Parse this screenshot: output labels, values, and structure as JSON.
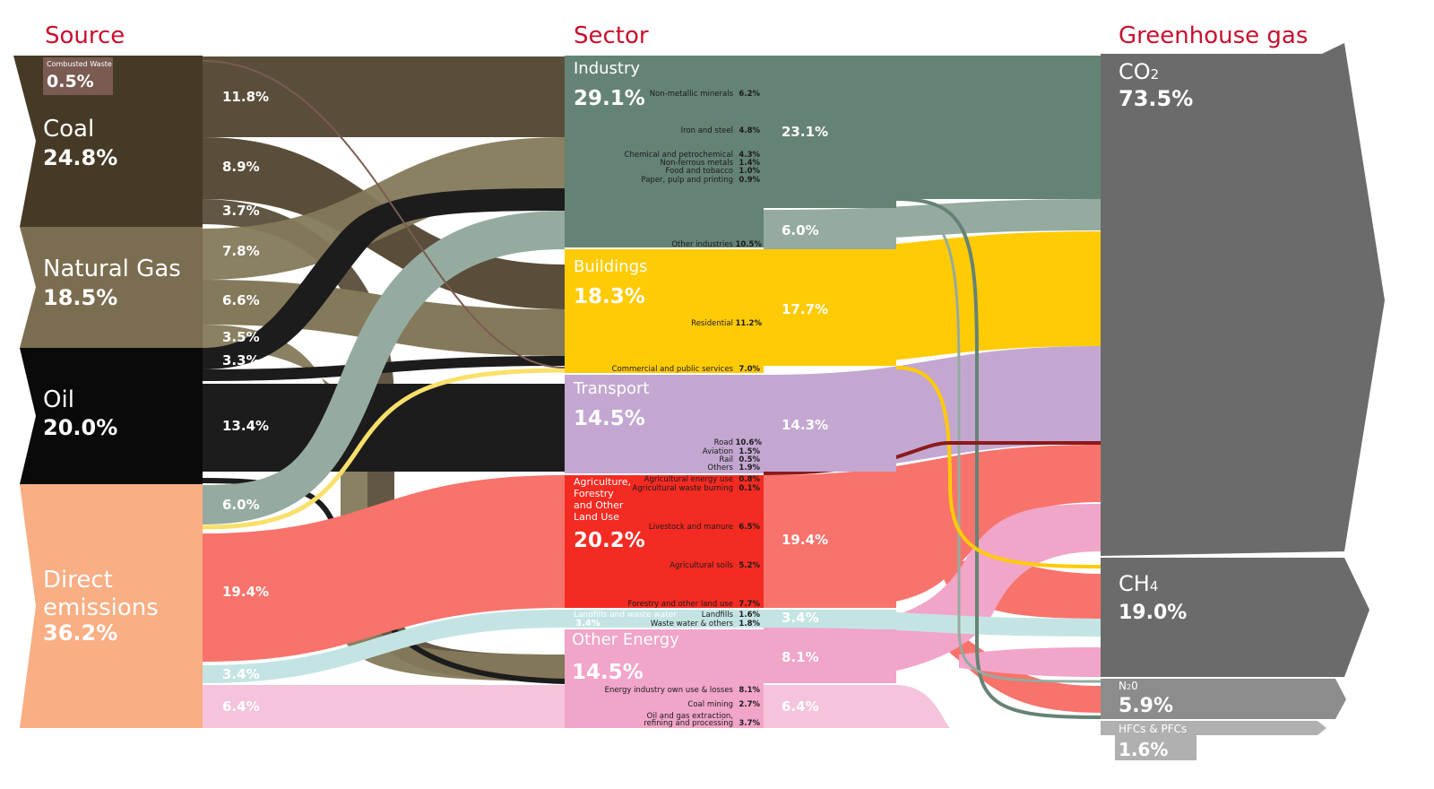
{
  "headers": {
    "source": "Source",
    "sector": "Sector",
    "gas": "Greenhouse gas"
  },
  "sources": {
    "combusted": {
      "name": "Combusted Waste",
      "pct": "0.5%"
    },
    "coal": {
      "name": "Coal",
      "pct": "24.8%"
    },
    "gas": {
      "name": "Natural Gas",
      "pct": "18.5%"
    },
    "oil": {
      "name": "Oil",
      "pct": "20.0%"
    },
    "direct": {
      "name1": "Direct",
      "name2": "emissions",
      "pct": "36.2%"
    }
  },
  "source_flows": [
    "11.8%",
    "8.9%",
    "3.7%",
    "7.8%",
    "6.6%",
    "3.5%",
    "3.3%",
    "13.4%",
    "6.0%",
    "19.4%",
    "3.4%",
    "6.4%"
  ],
  "sectors": {
    "industry": {
      "name": "Industry",
      "pct": "29.1%",
      "subs": [
        {
          "label": "Non-metallic minerals",
          "value": "6.2%"
        },
        {
          "label": "Iron and steel",
          "value": "4.8%"
        },
        {
          "label": "Chemical and petrochemical",
          "value": "4.3%"
        },
        {
          "label": "Non-ferrous metals",
          "value": "1.4%"
        },
        {
          "label": "Food and tobacco",
          "value": "1.0%"
        },
        {
          "label": "Paper, pulp and printing",
          "value": "0.9%"
        },
        {
          "label": "Other industries",
          "value": "10.5%"
        }
      ]
    },
    "buildings": {
      "name": "Buildings",
      "pct": "18.3%",
      "subs": [
        {
          "label": "Residential",
          "value": "11.2%"
        },
        {
          "label": "Commercial and public services",
          "value": "7.0%"
        }
      ]
    },
    "transport": {
      "name": "Transport",
      "pct": "14.5%",
      "subs": [
        {
          "label": "Road",
          "value": "10.6%"
        },
        {
          "label": "Aviation",
          "value": "1.5%"
        },
        {
          "label": "Rail",
          "value": "0.5%"
        },
        {
          "label": "Others",
          "value": "1.9%"
        }
      ]
    },
    "afolu": {
      "name_lines": [
        "Agriculture,",
        "Forestry",
        "and Other",
        "Land Use"
      ],
      "pct": "20.2%",
      "subs": [
        {
          "label": "Agricultural energy use",
          "value": "0.8%"
        },
        {
          "label": "Agricultural waste burning",
          "value": "0.1%"
        },
        {
          "label": "Livestock and manure",
          "value": "6.5%"
        },
        {
          "label": "Agricultural soils",
          "value": "5.2%"
        },
        {
          "label": "Forestry and other land use",
          "value": "7.7%"
        }
      ]
    },
    "waste": {
      "name": "Landfills and waste water",
      "pct": "3.4%",
      "subs": [
        {
          "label": "Landfills",
          "value": "1.6%"
        },
        {
          "label": "Waste water & others",
          "value": "1.8%"
        }
      ]
    },
    "other_energy": {
      "name": "Other Energy",
      "pct": "14.5%",
      "subs": [
        {
          "label": "Energy industry own use & losses",
          "value": "8.1%"
        },
        {
          "label": "Coal mining",
          "value": "2.7%"
        },
        {
          "label": "Oil and gas extraction,",
          "label2": "refining and processing",
          "value": "3.7%"
        }
      ]
    }
  },
  "sector_flows": [
    "23.1%",
    "6.0%",
    "17.7%",
    "14.3%",
    "19.4%",
    "3.4%",
    "8.1%",
    "6.4%"
  ],
  "gases": {
    "co2": {
      "name": "CO",
      "sub": "2",
      "pct": "73.5%"
    },
    "ch4": {
      "name": "CH",
      "sub": "4",
      "pct": "19.0%"
    },
    "n2o": {
      "name": "N",
      "sub": "2",
      "name_end": "0",
      "pct": "5.9%"
    },
    "hfc": {
      "name": "HFCs & PFCs",
      "pct": "1.6%"
    }
  },
  "colors": {
    "header": "#c8102e",
    "coal": "#463a26",
    "coal_flow": "#5a4e3a",
    "gas": "#7b6d4f",
    "gas_flow": "#84795a",
    "oil": "#0a0a0a",
    "oil_flow": "#1c1c1c",
    "direct": "#f9ae84",
    "combusted": "#7a5b52",
    "industry": "#658374",
    "industry_flow": "#95aba0",
    "buildings": "#ffcb05",
    "commercial_line": "#f9e06b",
    "transport": "#c3a7d1",
    "afolu": "#f42b22",
    "afolu_flow": "#f8736b",
    "waste": "#c4e4e4",
    "other_energy": "#f1a5c8",
    "other_energy_flow": "#f5c4dc",
    "gas_box": "#6b6b6b",
    "gas_box_light": "#8c8c8c",
    "dark_red": "#8c1a1a"
  }
}
